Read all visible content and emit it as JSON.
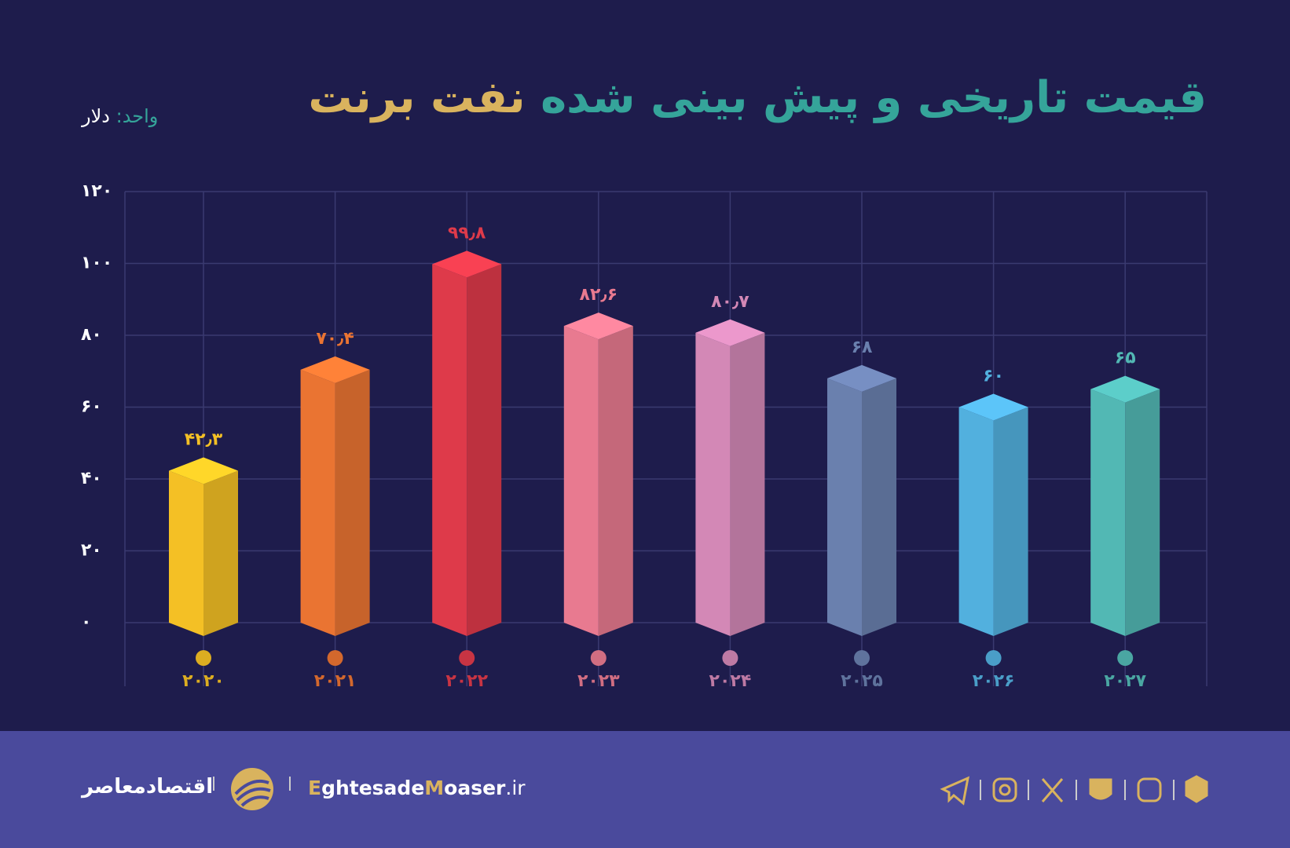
{
  "chart_data": {
    "type": "bar3d",
    "title_parts": [
      "قیمت تاریخی و پیش بینی شده",
      "نفت برنت"
    ],
    "unit_label": "واحد:",
    "unit": "دلار",
    "categories": [
      "۲۰۲۰",
      "۲۰۲۱",
      "۲۰۲۲",
      "۲۰۲۳",
      "۲۰۲۴",
      "۲۰۲۵",
      "۲۰۲۶",
      "۲۰۲۷"
    ],
    "values": [
      42.3,
      70.4,
      99.8,
      82.6,
      80.7,
      68,
      60,
      65
    ],
    "value_labels": [
      "۴۲٫۳",
      "۷۰٫۴",
      "۹۹٫۸",
      "۸۲٫۶",
      "۸۰٫۷",
      "۶۸",
      "۶۰",
      "۶۵"
    ],
    "colors": [
      "#f4c025",
      "#ea7432",
      "#de3a4a",
      "#e87a90",
      "#d388b6",
      "#6a80ae",
      "#52b0de",
      "#52b8b4"
    ],
    "ylim": [
      0,
      120
    ],
    "yticks": [
      {
        "value": 0,
        "label": "۰"
      },
      {
        "value": 20,
        "label": "۲۰"
      },
      {
        "value": 40,
        "label": "۴۰"
      },
      {
        "value": 60,
        "label": "۶۰"
      },
      {
        "value": 80,
        "label": "۸۰"
      },
      {
        "value": 100,
        "label": "۱۰۰"
      },
      {
        "value": 120,
        "label": "۱۲۰"
      }
    ],
    "grid": true
  },
  "footer": {
    "brand": "اقتصادمعاصر",
    "site_parts": [
      "E",
      "ghtesade",
      "M",
      "oaser",
      ".ir"
    ]
  }
}
